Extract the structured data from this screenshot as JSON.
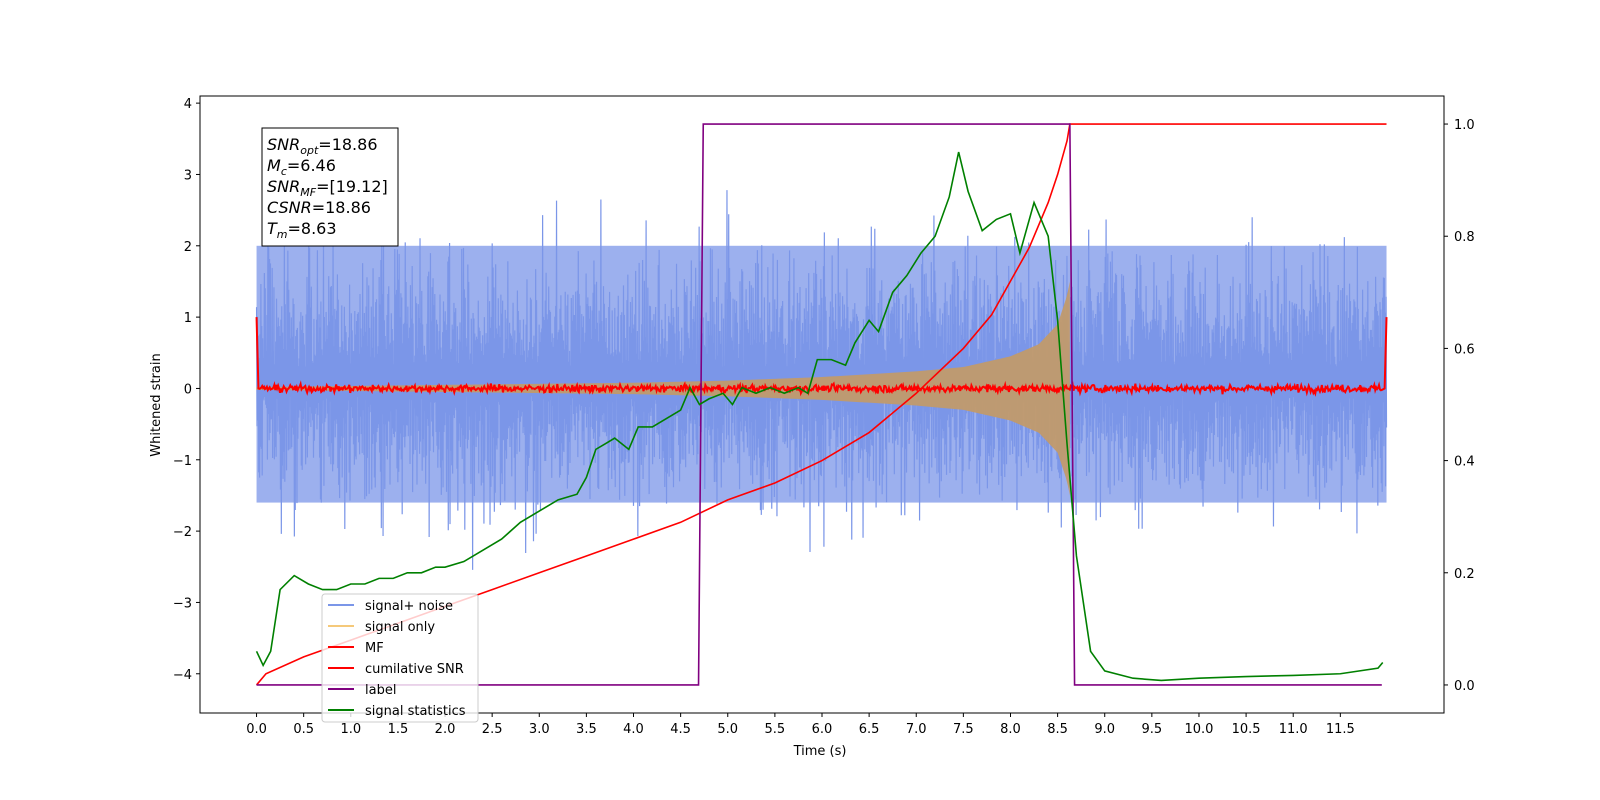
{
  "chart_data": {
    "type": "line",
    "xlabel": "Time (s)",
    "ylabel": "Whitened strain",
    "xlim": [
      -0.6,
      12.6
    ],
    "ylim": [
      -4.55,
      4.1
    ],
    "y2lim": [
      -0.05,
      1.05
    ],
    "xticks": [
      "0.0",
      "0.5",
      "1.0",
      "1.5",
      "2.0",
      "2.5",
      "3.0",
      "3.5",
      "4.0",
      "4.5",
      "5.0",
      "5.5",
      "6.0",
      "6.5",
      "7.0",
      "7.5",
      "8.0",
      "8.5",
      "9.0",
      "9.5",
      "10.0",
      "10.5",
      "11.0",
      "11.5"
    ],
    "yticks": [
      "−4",
      "−3",
      "−2",
      "−1",
      "0",
      "1",
      "2",
      "3",
      "4"
    ],
    "y2ticks": [
      "0.0",
      "0.2",
      "0.4",
      "0.6",
      "0.8",
      "1.0"
    ],
    "grid": false,
    "legend_position": "lower-left",
    "stats_box": {
      "lines": [
        {
          "main": "SNR",
          "sub": "opt",
          "value": "=18.86"
        },
        {
          "main": "M",
          "sub": "c",
          "value": "=6.46"
        },
        {
          "main": "SNR",
          "sub": "MF",
          "value": "=[19.12]"
        },
        {
          "main": "CSNR",
          "sub": "",
          "value": "=18.86"
        },
        {
          "main": "T",
          "sub": "m",
          "value": "=8.63"
        }
      ]
    },
    "legend": [
      {
        "label": "signal+ noise",
        "color": "#7b96e8"
      },
      {
        "label": "signal only",
        "color": "#f5c97a"
      },
      {
        "label": "MF",
        "color": "#ff0000"
      },
      {
        "label": "cumilative SNR",
        "color": "#ff0000"
      },
      {
        "label": "label",
        "color": "#800080"
      },
      {
        "label": "signal statistics",
        "color": "#008000"
      }
    ],
    "series": [
      {
        "name": "signal+ noise",
        "axis": "left",
        "color": "#7b96e8",
        "t_start": 0.0,
        "t_end": 11.99,
        "envelope": [
          -1.6,
          2.0
        ]
      },
      {
        "name": "signal only",
        "axis": "left",
        "color": "#c19a6b",
        "t_start": 0.0,
        "t_end": 8.63,
        "amplitude": [
          [
            0.0,
            0.02
          ],
          [
            2.0,
            0.05
          ],
          [
            4.0,
            0.08
          ],
          [
            5.0,
            0.11
          ],
          [
            6.0,
            0.16
          ],
          [
            7.0,
            0.24
          ],
          [
            7.5,
            0.3
          ],
          [
            8.0,
            0.45
          ],
          [
            8.3,
            0.62
          ],
          [
            8.5,
            0.9
          ],
          [
            8.6,
            1.3
          ],
          [
            8.63,
            1.5
          ]
        ]
      },
      {
        "name": "MF",
        "axis": "left",
        "color": "#ff0000",
        "t_start": 0.0,
        "t_end": 11.99,
        "level": 0.0,
        "edge_value": 1.0
      },
      {
        "name": "cumilative SNR",
        "axis": "right",
        "color": "#ff0000",
        "x": [
          0.0,
          0.1,
          0.5,
          1.0,
          1.5,
          2.0,
          2.5,
          3.0,
          3.5,
          4.0,
          4.5,
          5.0,
          5.5,
          6.0,
          6.5,
          7.0,
          7.5,
          7.8,
          8.0,
          8.2,
          8.4,
          8.5,
          8.55,
          8.6,
          8.63,
          8.7,
          9.0,
          10.0,
          11.0,
          11.99
        ],
        "y": [
          0.0,
          0.02,
          0.05,
          0.08,
          0.11,
          0.14,
          0.17,
          0.2,
          0.23,
          0.26,
          0.29,
          0.33,
          0.36,
          0.4,
          0.45,
          0.52,
          0.6,
          0.66,
          0.72,
          0.78,
          0.86,
          0.91,
          0.94,
          0.97,
          1.0,
          1.0,
          1.0,
          1.0,
          1.0,
          1.0
        ]
      },
      {
        "name": "label",
        "axis": "right",
        "color": "#800080",
        "x": [
          0.0,
          4.69,
          4.74,
          8.63,
          8.68,
          11.94
        ],
        "y": [
          0,
          0,
          1,
          1,
          0,
          0
        ]
      },
      {
        "name": "signal statistics",
        "axis": "right",
        "color": "#008000",
        "x": [
          0.0,
          0.07,
          0.15,
          0.25,
          0.4,
          0.55,
          0.7,
          0.85,
          1.0,
          1.15,
          1.3,
          1.45,
          1.6,
          1.75,
          1.9,
          2.0,
          2.2,
          2.4,
          2.6,
          2.8,
          3.0,
          3.2,
          3.4,
          3.5,
          3.6,
          3.7,
          3.8,
          3.95,
          4.05,
          4.2,
          4.3,
          4.4,
          4.5,
          4.6,
          4.7,
          4.8,
          4.95,
          5.05,
          5.15,
          5.3,
          5.45,
          5.6,
          5.75,
          5.85,
          5.95,
          6.1,
          6.25,
          6.35,
          6.5,
          6.6,
          6.75,
          6.9,
          7.05,
          7.2,
          7.35,
          7.45,
          7.55,
          7.7,
          7.85,
          8.0,
          8.1,
          8.25,
          8.4,
          8.5,
          8.6,
          8.7,
          8.85,
          9.0,
          9.3,
          9.6,
          10.0,
          10.5,
          11.0,
          11.5,
          11.9,
          11.95
        ],
        "y": [
          0.06,
          0.035,
          0.06,
          0.17,
          0.195,
          0.18,
          0.17,
          0.17,
          0.18,
          0.18,
          0.19,
          0.19,
          0.2,
          0.2,
          0.21,
          0.21,
          0.22,
          0.24,
          0.26,
          0.29,
          0.31,
          0.33,
          0.34,
          0.37,
          0.42,
          0.43,
          0.44,
          0.42,
          0.46,
          0.46,
          0.47,
          0.48,
          0.49,
          0.53,
          0.5,
          0.51,
          0.52,
          0.5,
          0.53,
          0.52,
          0.53,
          0.52,
          0.53,
          0.52,
          0.58,
          0.58,
          0.57,
          0.61,
          0.65,
          0.63,
          0.7,
          0.73,
          0.77,
          0.8,
          0.87,
          0.95,
          0.88,
          0.81,
          0.83,
          0.84,
          0.77,
          0.86,
          0.8,
          0.65,
          0.43,
          0.23,
          0.06,
          0.025,
          0.012,
          0.008,
          0.012,
          0.015,
          0.017,
          0.02,
          0.03,
          0.04
        ]
      }
    ]
  }
}
